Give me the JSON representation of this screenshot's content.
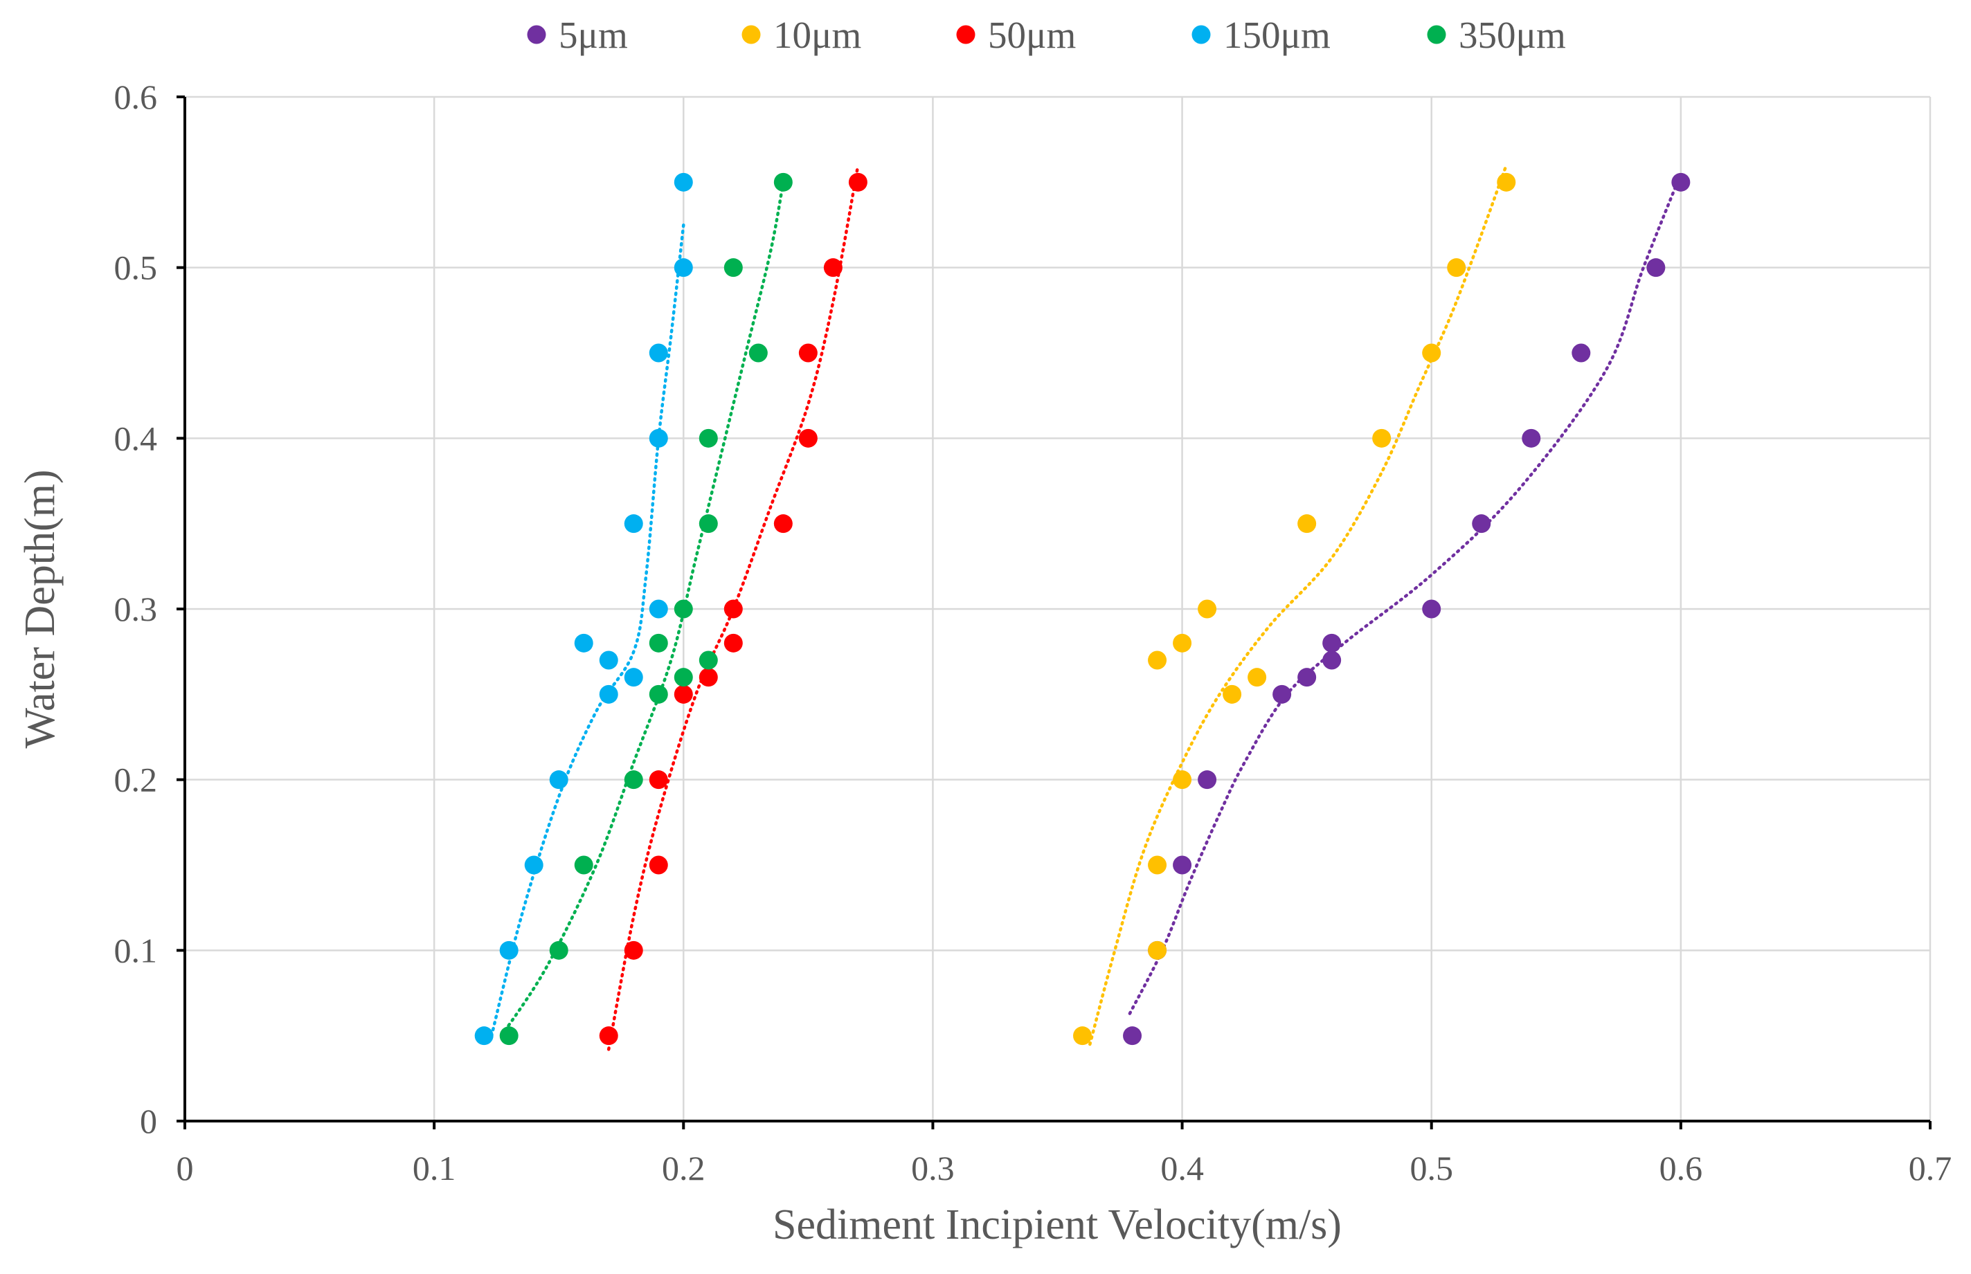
{
  "chart_data": {
    "type": "scatter",
    "xlabel": "Sediment Incipient Velocity(m/s)",
    "ylabel": "Water Depth(m)",
    "xlim": [
      0,
      0.7
    ],
    "ylim": [
      0,
      0.6
    ],
    "xticks": [
      "0",
      "0.1",
      "0.2",
      "0.3",
      "0.4",
      "0.5",
      "0.6",
      "0.7"
    ],
    "yticks": [
      "0",
      "0.1",
      "0.2",
      "0.3",
      "0.4",
      "0.5",
      "0.6"
    ],
    "grid": true,
    "legend_position": "top",
    "trendlines": "dotted",
    "series": [
      {
        "name": "5μm",
        "color": "#7030A0",
        "points": [
          [
            0.38,
            0.05
          ],
          [
            0.39,
            0.1
          ],
          [
            0.4,
            0.15
          ],
          [
            0.41,
            0.2
          ],
          [
            0.44,
            0.25
          ],
          [
            0.45,
            0.26
          ],
          [
            0.46,
            0.27
          ],
          [
            0.46,
            0.28
          ],
          [
            0.5,
            0.3
          ],
          [
            0.52,
            0.35
          ],
          [
            0.54,
            0.4
          ],
          [
            0.56,
            0.45
          ],
          [
            0.59,
            0.5
          ],
          [
            0.6,
            0.55
          ]
        ],
        "trend": [
          [
            0.379,
            0.063
          ],
          [
            0.392,
            0.1
          ],
          [
            0.403,
            0.14
          ],
          [
            0.415,
            0.18
          ],
          [
            0.425,
            0.21
          ],
          [
            0.442,
            0.25
          ],
          [
            0.465,
            0.28
          ],
          [
            0.5,
            0.32
          ],
          [
            0.535,
            0.37
          ],
          [
            0.57,
            0.44
          ],
          [
            0.585,
            0.5
          ],
          [
            0.6,
            0.555
          ]
        ]
      },
      {
        "name": "10μm",
        "color": "#FFC000",
        "points": [
          [
            0.36,
            0.05
          ],
          [
            0.39,
            0.1
          ],
          [
            0.39,
            0.15
          ],
          [
            0.4,
            0.2
          ],
          [
            0.42,
            0.25
          ],
          [
            0.43,
            0.26
          ],
          [
            0.39,
            0.27
          ],
          [
            0.4,
            0.28
          ],
          [
            0.41,
            0.3
          ],
          [
            0.45,
            0.35
          ],
          [
            0.48,
            0.4
          ],
          [
            0.5,
            0.45
          ],
          [
            0.51,
            0.5
          ],
          [
            0.53,
            0.55
          ]
        ],
        "trend": [
          [
            0.363,
            0.045
          ],
          [
            0.373,
            0.1
          ],
          [
            0.385,
            0.16
          ],
          [
            0.4,
            0.21
          ],
          [
            0.415,
            0.25
          ],
          [
            0.435,
            0.29
          ],
          [
            0.46,
            0.33
          ],
          [
            0.48,
            0.38
          ],
          [
            0.495,
            0.43
          ],
          [
            0.51,
            0.48
          ],
          [
            0.53,
            0.56
          ]
        ]
      },
      {
        "name": "50μm",
        "color": "#FF0000",
        "points": [
          [
            0.17,
            0.05
          ],
          [
            0.18,
            0.1
          ],
          [
            0.19,
            0.15
          ],
          [
            0.19,
            0.2
          ],
          [
            0.2,
            0.25
          ],
          [
            0.21,
            0.26
          ],
          [
            0.22,
            0.28
          ],
          [
            0.22,
            0.3
          ],
          [
            0.24,
            0.35
          ],
          [
            0.25,
            0.4
          ],
          [
            0.25,
            0.45
          ],
          [
            0.26,
            0.5
          ],
          [
            0.27,
            0.55
          ]
        ],
        "trend": [
          [
            0.17,
            0.042
          ],
          [
            0.18,
            0.12
          ],
          [
            0.19,
            0.18
          ],
          [
            0.205,
            0.25
          ],
          [
            0.22,
            0.3
          ],
          [
            0.235,
            0.36
          ],
          [
            0.25,
            0.42
          ],
          [
            0.26,
            0.48
          ],
          [
            0.27,
            0.56
          ]
        ]
      },
      {
        "name": "150μm",
        "color": "#00B0F0",
        "points": [
          [
            0.12,
            0.05
          ],
          [
            0.13,
            0.1
          ],
          [
            0.14,
            0.15
          ],
          [
            0.15,
            0.2
          ],
          [
            0.17,
            0.25
          ],
          [
            0.18,
            0.26
          ],
          [
            0.17,
            0.27
          ],
          [
            0.16,
            0.28
          ],
          [
            0.19,
            0.3
          ],
          [
            0.18,
            0.35
          ],
          [
            0.19,
            0.4
          ],
          [
            0.19,
            0.45
          ],
          [
            0.2,
            0.5
          ],
          [
            0.2,
            0.55
          ]
        ],
        "trend": [
          [
            0.123,
            0.05
          ],
          [
            0.135,
            0.12
          ],
          [
            0.15,
            0.19
          ],
          [
            0.165,
            0.24
          ],
          [
            0.18,
            0.275
          ],
          [
            0.185,
            0.32
          ],
          [
            0.19,
            0.4
          ],
          [
            0.195,
            0.46
          ],
          [
            0.2,
            0.525
          ]
        ]
      },
      {
        "name": "350μm",
        "color": "#00B050",
        "points": [
          [
            0.13,
            0.05
          ],
          [
            0.15,
            0.1
          ],
          [
            0.16,
            0.15
          ],
          [
            0.18,
            0.2
          ],
          [
            0.19,
            0.25
          ],
          [
            0.2,
            0.26
          ],
          [
            0.21,
            0.27
          ],
          [
            0.19,
            0.28
          ],
          [
            0.2,
            0.3
          ],
          [
            0.21,
            0.35
          ],
          [
            0.21,
            0.4
          ],
          [
            0.23,
            0.45
          ],
          [
            0.22,
            0.5
          ],
          [
            0.24,
            0.55
          ]
        ],
        "trend": [
          [
            0.127,
            0.05
          ],
          [
            0.145,
            0.09
          ],
          [
            0.165,
            0.15
          ],
          [
            0.18,
            0.21
          ],
          [
            0.195,
            0.27
          ],
          [
            0.205,
            0.33
          ],
          [
            0.215,
            0.39
          ],
          [
            0.225,
            0.45
          ],
          [
            0.235,
            0.51
          ],
          [
            0.24,
            0.55
          ]
        ]
      }
    ]
  }
}
